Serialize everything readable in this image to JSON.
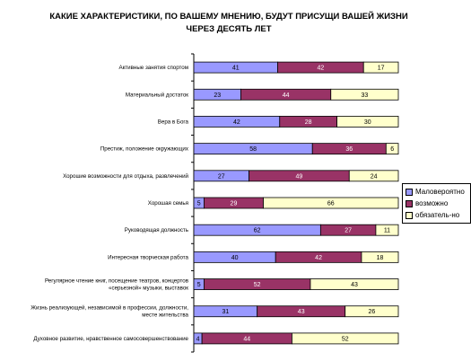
{
  "chart_data": {
    "type": "bar",
    "orientation": "horizontal",
    "stacked": true,
    "percent_stacked": true,
    "title": "КАКИЕ ХАРАКТЕРИСТИКИ, ПО ВАШЕМУ МНЕНИЮ, БУДУТ ПРИСУЩИ ВАШЕЙ ЖИЗНИ ЧЕРЕЗ ДЕСЯТЬ ЛЕТ",
    "xlim": [
      0,
      100
    ],
    "grid": false,
    "legend_position": "right",
    "categories": [
      "Активные занятия спортом",
      "Материальный достаток",
      "Вера в Бога",
      "Престиж, положение окружающих",
      "Хорошие возможности для отдыха, развлечений",
      "Хорошая семья",
      "Руководящая должность",
      "Интересная творческая работа",
      "Регулярное чтение книг, посещение театров, концертов «серьезной» музыки, выставок",
      "Жизнь реализующей, независимой в профессии, должности, месте жительства",
      "Духовное развитие, нравственное самосовершенствование"
    ],
    "series": [
      {
        "name": "Маловероятно",
        "color": "#9999ff",
        "values": [
          41,
          23,
          42,
          58,
          27,
          5,
          62,
          40,
          5,
          31,
          4
        ]
      },
      {
        "name": "возможно",
        "color": "#993366",
        "values": [
          42,
          44,
          28,
          36,
          49,
          29,
          27,
          42,
          52,
          43,
          44
        ]
      },
      {
        "name": "обязатель-но",
        "color": "#ffffcc",
        "values": [
          17,
          33,
          30,
          6,
          24,
          66,
          11,
          18,
          43,
          26,
          52
        ]
      }
    ]
  }
}
